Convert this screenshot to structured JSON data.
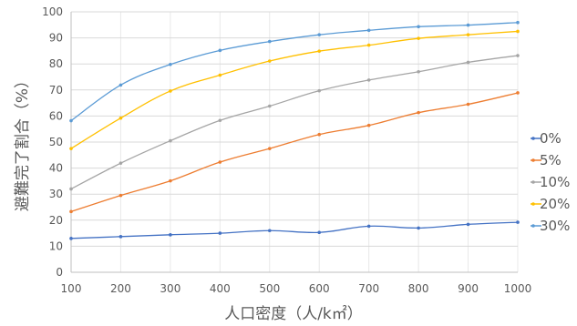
{
  "chart_data": {
    "type": "line",
    "x": [
      100,
      200,
      300,
      400,
      500,
      600,
      700,
      800,
      900,
      1000
    ],
    "xlabel": "人口密度（人/k㎡）",
    "ylabel": "避難完了割合（%）",
    "xlim": [
      100,
      1000
    ],
    "ylim": [
      0,
      100
    ],
    "x_ticks": [
      "100",
      "200",
      "300",
      "400",
      "500",
      "600",
      "700",
      "800",
      "900",
      "1000"
    ],
    "y_ticks": [
      "0",
      "10",
      "20",
      "30",
      "40",
      "50",
      "60",
      "70",
      "80",
      "90",
      "100"
    ],
    "grid": "horizontal",
    "legend_position": "right",
    "series": [
      {
        "name": "0%",
        "color": "#4472c4",
        "values": [
          13.0,
          13.7,
          14.4,
          15.0,
          16.0,
          15.3,
          17.7,
          17.0,
          18.4,
          19.2
        ]
      },
      {
        "name": "5%",
        "color": "#ed7d31",
        "values": [
          23.3,
          29.5,
          35.1,
          42.3,
          47.5,
          52.9,
          56.4,
          61.3,
          64.5,
          68.9
        ]
      },
      {
        "name": "10%",
        "color": "#a5a5a5",
        "values": [
          32.0,
          41.9,
          50.5,
          58.3,
          63.8,
          69.7,
          73.8,
          77.0,
          80.6,
          83.2
        ]
      },
      {
        "name": "20%",
        "color": "#ffc000",
        "values": [
          47.5,
          59.2,
          69.6,
          75.7,
          81.1,
          84.9,
          87.2,
          89.8,
          91.2,
          92.5
        ]
      },
      {
        "name": "30%",
        "color": "#5b9bd5",
        "values": [
          58.2,
          71.9,
          79.8,
          85.2,
          88.6,
          91.2,
          92.9,
          94.3,
          94.9,
          95.9
        ]
      }
    ]
  }
}
